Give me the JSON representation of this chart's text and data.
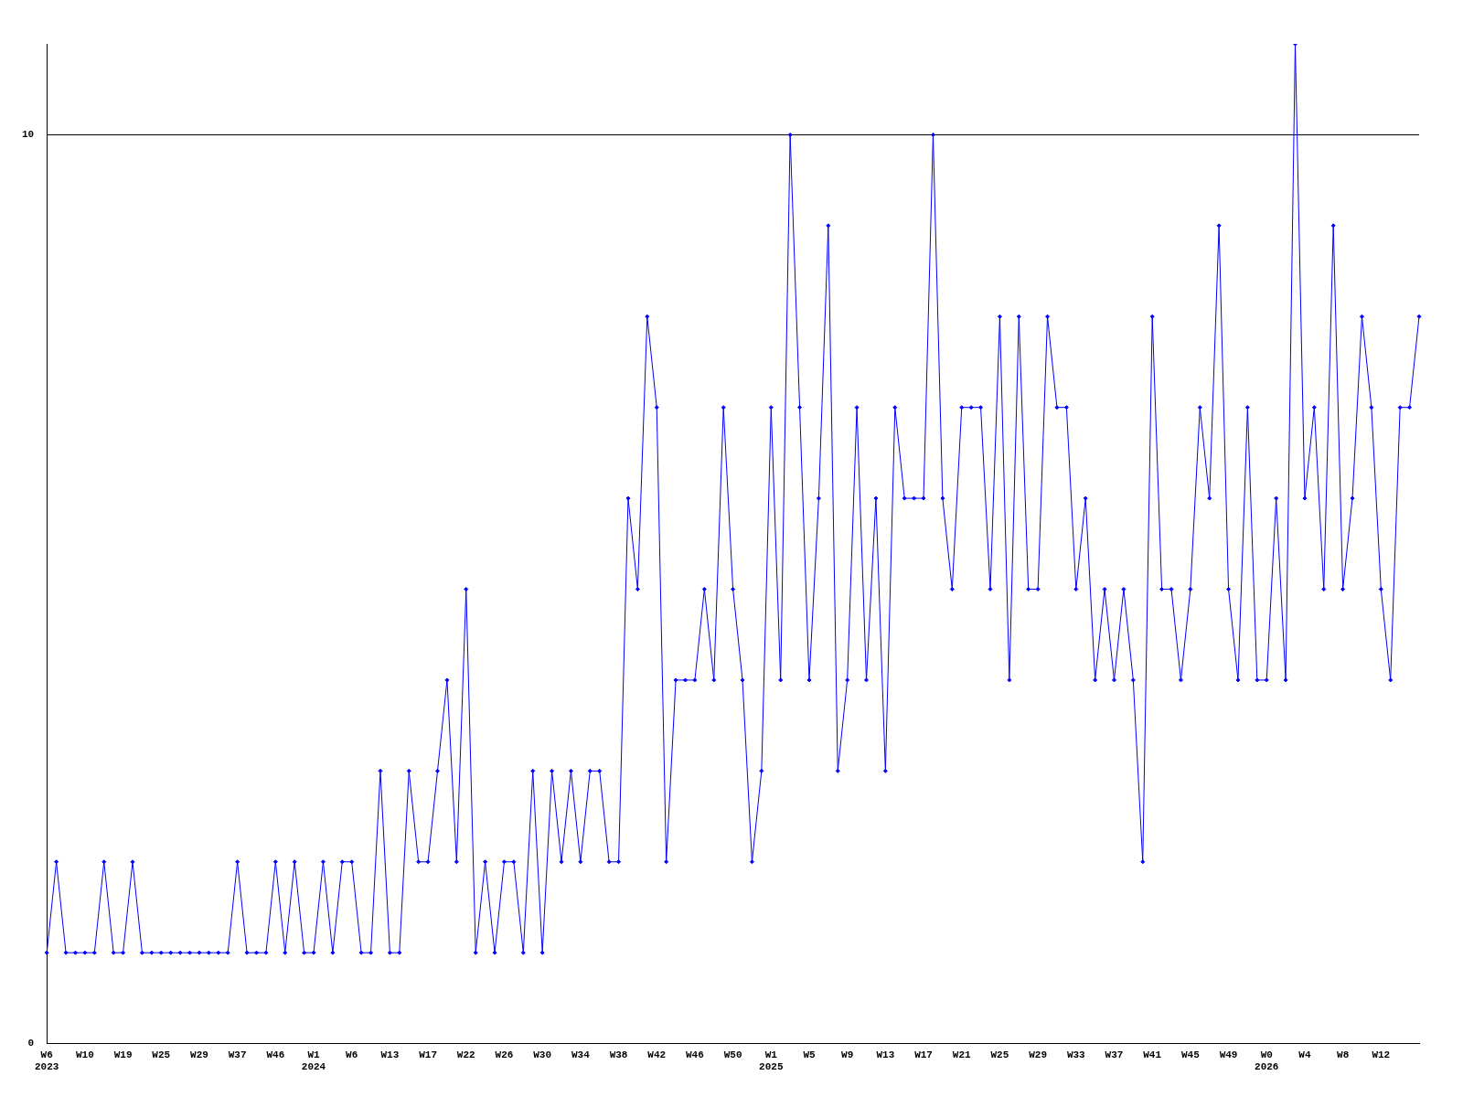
{
  "chart_data": {
    "type": "line",
    "color": "#0000ff",
    "marker": "diamond",
    "grid": "y",
    "legend": false,
    "ylim": [
      0,
      11
    ],
    "yticks": [
      0,
      10
    ],
    "categories": [
      "W6\n2023",
      null,
      null,
      null,
      "W10",
      null,
      null,
      null,
      "W19",
      null,
      null,
      null,
      "W25",
      null,
      null,
      null,
      "W29",
      null,
      null,
      null,
      "W37",
      null,
      null,
      null,
      "W46",
      null,
      null,
      null,
      "W1\n2024",
      null,
      null,
      null,
      "W6",
      null,
      null,
      null,
      "W13",
      null,
      null,
      null,
      "W17",
      null,
      null,
      null,
      "W22",
      null,
      null,
      null,
      "W26",
      null,
      null,
      null,
      "W30",
      null,
      null,
      null,
      "W34",
      null,
      null,
      null,
      "W38",
      null,
      null,
      null,
      "W42",
      null,
      null,
      null,
      "W46",
      null,
      null,
      null,
      "W50",
      null,
      null,
      null,
      "W1\n2025",
      null,
      null,
      null,
      "W5",
      null,
      null,
      null,
      "W9",
      null,
      null,
      null,
      "W13",
      null,
      null,
      null,
      "W17",
      null,
      null,
      null,
      "W21",
      null,
      null,
      null,
      "W25",
      null,
      null,
      null,
      "W29",
      null,
      null,
      null,
      "W33",
      null,
      null,
      null,
      "W37",
      null,
      null,
      null,
      "W41",
      null,
      null,
      null,
      "W45",
      null,
      null,
      null,
      "W49",
      null,
      null,
      null,
      "W0\n2026",
      null,
      null,
      null,
      "W4",
      null,
      null,
      null,
      "W8",
      null,
      null,
      null,
      "W12",
      null,
      null,
      null,
      null
    ],
    "values": [
      1,
      2,
      1,
      1,
      1,
      1,
      2,
      1,
      1,
      2,
      1,
      1,
      1,
      1,
      1,
      1,
      1,
      1,
      1,
      1,
      2,
      1,
      1,
      1,
      2,
      1,
      2,
      1,
      1,
      2,
      1,
      2,
      2,
      1,
      1,
      3,
      1,
      1,
      3,
      2,
      2,
      3,
      4,
      2,
      5,
      1,
      2,
      1,
      2,
      2,
      1,
      3,
      1,
      3,
      2,
      3,
      2,
      3,
      3,
      2,
      2,
      6,
      5,
      8,
      7,
      2,
      4,
      4,
      4,
      5,
      4,
      7,
      5,
      4,
      2,
      3,
      7,
      4,
      10,
      7,
      4,
      6,
      9,
      3,
      4,
      7,
      4,
      6,
      3,
      7,
      6,
      6,
      6,
      10,
      6,
      5,
      7,
      7,
      7,
      5,
      8,
      4,
      8,
      5,
      5,
      8,
      7,
      7,
      5,
      6,
      4,
      5,
      4,
      5,
      4,
      2,
      8,
      5,
      5,
      4,
      5,
      7,
      6,
      9,
      5,
      4,
      7,
      4,
      4,
      6,
      4,
      11,
      6,
      7,
      5,
      9,
      5,
      6,
      8,
      7,
      5,
      4,
      7,
      7,
      8
    ]
  }
}
